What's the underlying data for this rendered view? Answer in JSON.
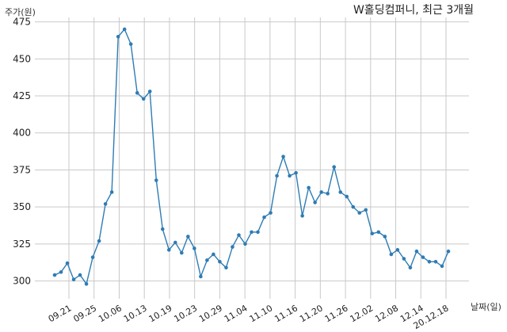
{
  "chart_data": {
    "type": "line",
    "title": "W홀딩컴퍼니, 최근 3개월",
    "ylabel": "주가(원)",
    "xlabel": "날짜(일)",
    "ylim": [
      288,
      478
    ],
    "yticks": [
      300,
      325,
      350,
      375,
      400,
      425,
      450,
      475
    ],
    "xtick_labels": [
      "09.21",
      "09.25",
      "10.06",
      "10.13",
      "10.19",
      "10.23",
      "10.29",
      "11.04",
      "11.10",
      "11.16",
      "11.20",
      "11.26",
      "12.02",
      "12.08",
      "12.14",
      "20.12.18"
    ],
    "grid": true,
    "color": "#2e7cb4",
    "series": [
      {
        "values": [
          304,
          306,
          312,
          301,
          304,
          298,
          316,
          327,
          352,
          360,
          465,
          470,
          460,
          427,
          423,
          428,
          368,
          335,
          321,
          326,
          319,
          330,
          322,
          303,
          314,
          318,
          313,
          309,
          323,
          331,
          325,
          333,
          333,
          343,
          346,
          371,
          384,
          371,
          373,
          344,
          363,
          353,
          360,
          359,
          377,
          360,
          357,
          350,
          346,
          348,
          332,
          333,
          330,
          318,
          321,
          315,
          309,
          320,
          316,
          313,
          313,
          310,
          320
        ]
      }
    ]
  }
}
